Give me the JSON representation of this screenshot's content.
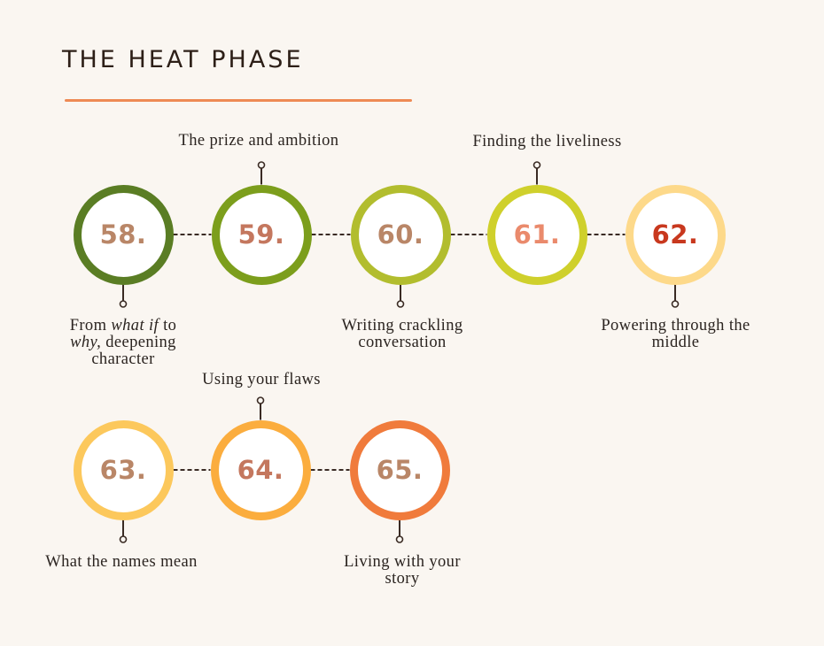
{
  "title": "THE HEAT PHASE",
  "colors": {
    "background": "#faf6f1",
    "accent_underline": "#ee8a54",
    "connector": "#3a2b24"
  },
  "steps": [
    {
      "number": "58.",
      "ring": "#5a7d24",
      "numColor": "#b98667",
      "labelPos": "below",
      "label": {
        "line1": [
          "From ",
          "what if",
          " to"
        ],
        "line2": [
          "why,",
          " deepening"
        ],
        "line3": "character"
      }
    },
    {
      "number": "59.",
      "ring": "#7c9e1c",
      "numColor": "#c4775e",
      "labelPos": "above",
      "label": "The prize and ambition"
    },
    {
      "number": "60.",
      "ring": "#b2bd2e",
      "numColor": "#b98667",
      "labelPos": "below",
      "label": "Writing crackling conversation"
    },
    {
      "number": "61.",
      "ring": "#cfd02c",
      "numColor": "#ea8a6c",
      "labelPos": "above",
      "label": "Finding the liveliness"
    },
    {
      "number": "62.",
      "ring": "#fdd98a",
      "numColor": "#c8381e",
      "labelPos": "below",
      "label": "Powering through the middle"
    },
    {
      "number": "63.",
      "ring": "#fcc85c",
      "numColor": "#b98667",
      "labelPos": "below",
      "label": "What the names mean"
    },
    {
      "number": "64.",
      "ring": "#fbad3e",
      "numColor": "#c4775e",
      "labelPos": "above",
      "label": "Using your flaws"
    },
    {
      "number": "65.",
      "ring": "#f07b3c",
      "numColor": "#b98667",
      "labelPos": "below",
      "label": "Living with your story"
    }
  ]
}
